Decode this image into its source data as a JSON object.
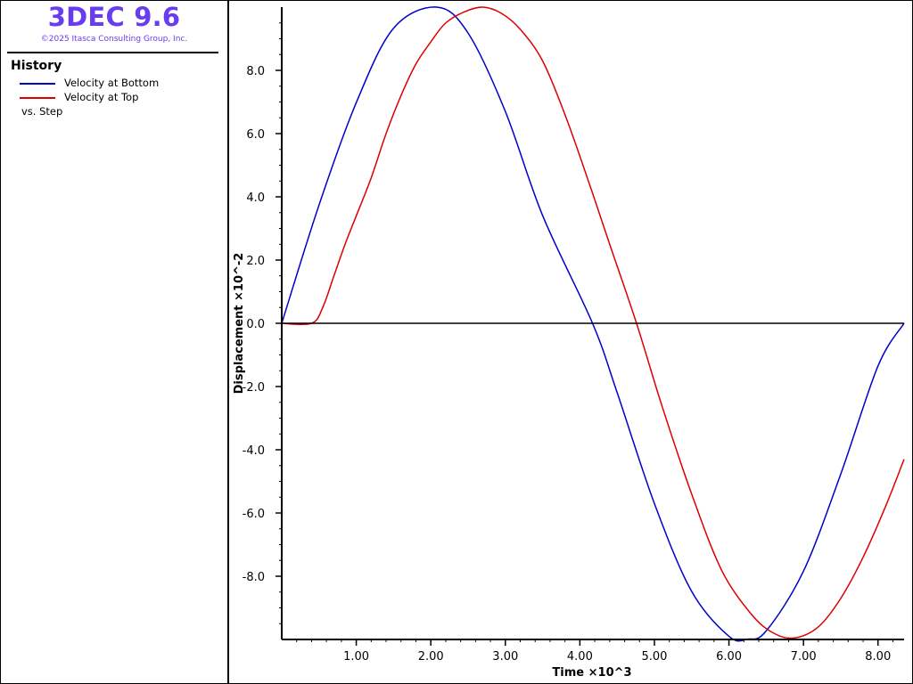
{
  "app": {
    "title": "3DEC 9.6",
    "copyright": "©2025 Itasca Consulting Group, Inc."
  },
  "legend": {
    "heading": "History",
    "items": [
      {
        "label": "Velocity at Bottom",
        "color": "#0000cc"
      },
      {
        "label": "Velocity at Top",
        "color": "#dd0000"
      }
    ],
    "vs_label": "vs. Step"
  },
  "chart_data": {
    "type": "line",
    "xlabel": "Time ×10^3",
    "ylabel": "Displacement  ×10^-2",
    "xlim": [
      0,
      8.35
    ],
    "ylim": [
      -10.0,
      10.0
    ],
    "x_ticks": [
      1.0,
      2.0,
      3.0,
      4.0,
      5.0,
      6.0,
      7.0,
      8.0
    ],
    "x_tick_labels": [
      "1.00",
      "2.00",
      "3.00",
      "4.00",
      "5.00",
      "6.00",
      "7.00",
      "8.00"
    ],
    "y_ticks": [
      8.0,
      6.0,
      4.0,
      2.0,
      0.0,
      -2.0,
      -4.0,
      -6.0,
      -8.0
    ],
    "y_tick_labels": [
      "8.0",
      "6.0",
      "4.0",
      "2.0",
      "0.0",
      "-2.0",
      "-4.0",
      "-6.0",
      "-8.0"
    ],
    "series": [
      {
        "name": "Velocity at Bottom",
        "color": "#0000cc",
        "x": [
          0.0,
          0.5,
          1.0,
          1.5,
          2.08,
          2.5,
          3.0,
          3.5,
          4.17,
          4.5,
          5.0,
          5.5,
          6.0,
          6.25,
          6.5,
          7.0,
          7.5,
          8.0,
          8.35
        ],
        "y": [
          0.0,
          3.74,
          6.98,
          9.33,
          10.0,
          9.18,
          6.7,
          3.41,
          0.0,
          -2.19,
          -5.7,
          -8.48,
          -9.9,
          -9.99,
          -9.73,
          -7.84,
          -4.77,
          -1.35,
          0.0
        ]
      },
      {
        "name": "Velocity at Top",
        "color": "#dd0000",
        "x": [
          0.0,
          0.4,
          0.55,
          0.7,
          0.85,
          1.0,
          1.2,
          1.4,
          1.6,
          1.8,
          2.0,
          2.2,
          2.45,
          2.7,
          2.95,
          3.2,
          3.5,
          3.8,
          4.1,
          4.4,
          4.76,
          5.1,
          5.5,
          5.9,
          6.3,
          6.6,
          6.88,
          7.2,
          7.5,
          7.8,
          8.1,
          8.35
        ],
        "y": [
          0.0,
          0.0,
          0.5,
          1.5,
          2.5,
          3.4,
          4.6,
          6.0,
          7.2,
          8.2,
          8.9,
          9.5,
          9.85,
          10.0,
          9.8,
          9.3,
          8.3,
          6.6,
          4.6,
          2.5,
          0.0,
          -2.6,
          -5.4,
          -7.8,
          -9.2,
          -9.8,
          -9.95,
          -9.6,
          -8.7,
          -7.4,
          -5.8,
          -4.3
        ]
      }
    ]
  }
}
